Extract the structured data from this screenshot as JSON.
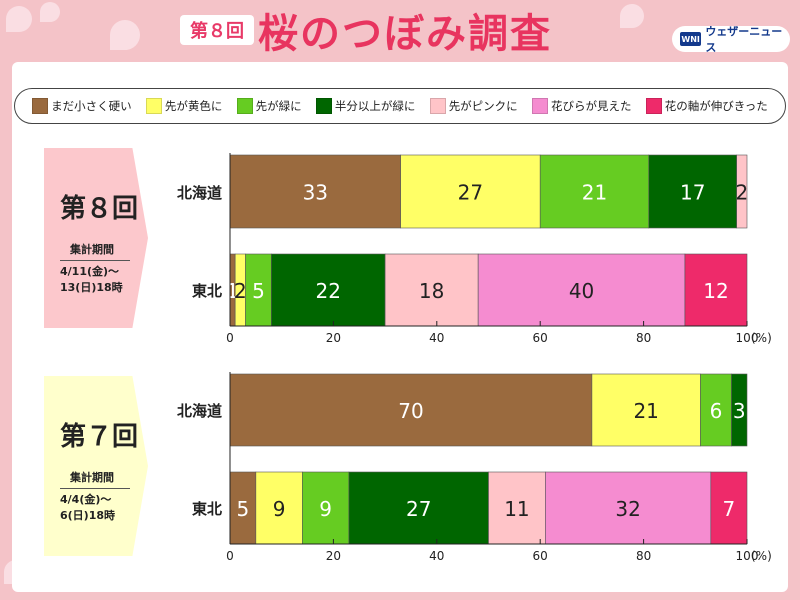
{
  "header": {
    "title_prefix": "第８回",
    "title_main": "桜のつぼみ調査",
    "brand": "ウェザーニュース",
    "brand_logo": "WNI"
  },
  "colors": {
    "まだ小さく硬い": "#9a6a3e",
    "先が黄色に": "#ffff66",
    "先が緑に": "#66cc22",
    "半分以上が緑に": "#006600",
    "先がピンクに": "#ffc4c8",
    "花びらが見えた": "#f58cd0",
    "花の軸が伸びきった": "#ee2a6a"
  },
  "legend": [
    "まだ小さく硬い",
    "先が黄色に",
    "先が緑に",
    "半分以上が緑に",
    "先がピンクに",
    "花びらが見えた",
    "花の軸が伸びきった"
  ],
  "round8": {
    "round_label": "第８回",
    "period_label": "集計期間",
    "date_line1": "4/11(金)〜",
    "date_line2": "13(日)18時",
    "badge_color": "#fcc8cc"
  },
  "round7": {
    "round_label": "第７回",
    "period_label": "集計期間",
    "date_line1": "4/4(金)〜",
    "date_line2": "6(日)18時",
    "badge_color": "#ffffcc"
  },
  "chart_data": [
    {
      "type": "bar",
      "orientation": "horizontal",
      "stacked": true,
      "round": "第８回",
      "categories": [
        "北海道",
        "東北"
      ],
      "series": [
        {
          "name": "まだ小さく硬い",
          "values": [
            33,
            1
          ]
        },
        {
          "name": "先が黄色に",
          "values": [
            27,
            2
          ]
        },
        {
          "name": "先が緑に",
          "values": [
            21,
            5
          ]
        },
        {
          "name": "半分以上が緑に",
          "values": [
            17,
            22
          ]
        },
        {
          "name": "先がピンクに",
          "values": [
            2,
            18
          ]
        },
        {
          "name": "花びらが見えた",
          "values": [
            0,
            40
          ]
        },
        {
          "name": "花の軸が伸びきった",
          "values": [
            0,
            12
          ]
        }
      ],
      "xlim": [
        0,
        100
      ],
      "ticks": [
        "0",
        "20",
        "40",
        "60",
        "80",
        "100"
      ],
      "unit": "(%)"
    },
    {
      "type": "bar",
      "orientation": "horizontal",
      "stacked": true,
      "round": "第７回",
      "categories": [
        "北海道",
        "東北"
      ],
      "series": [
        {
          "name": "まだ小さく硬い",
          "values": [
            70,
            5
          ]
        },
        {
          "name": "先が黄色に",
          "values": [
            21,
            9
          ]
        },
        {
          "name": "先が緑に",
          "values": [
            6,
            9
          ]
        },
        {
          "name": "半分以上が緑に",
          "values": [
            3,
            27
          ]
        },
        {
          "name": "先がピンクに",
          "values": [
            0,
            11
          ]
        },
        {
          "name": "花びらが見えた",
          "values": [
            0,
            32
          ]
        },
        {
          "name": "花の軸が伸びきった",
          "values": [
            0,
            7
          ]
        }
      ],
      "xlim": [
        0,
        100
      ],
      "ticks": [
        "0",
        "20",
        "40",
        "60",
        "80",
        "100"
      ],
      "unit": "(%)"
    }
  ]
}
